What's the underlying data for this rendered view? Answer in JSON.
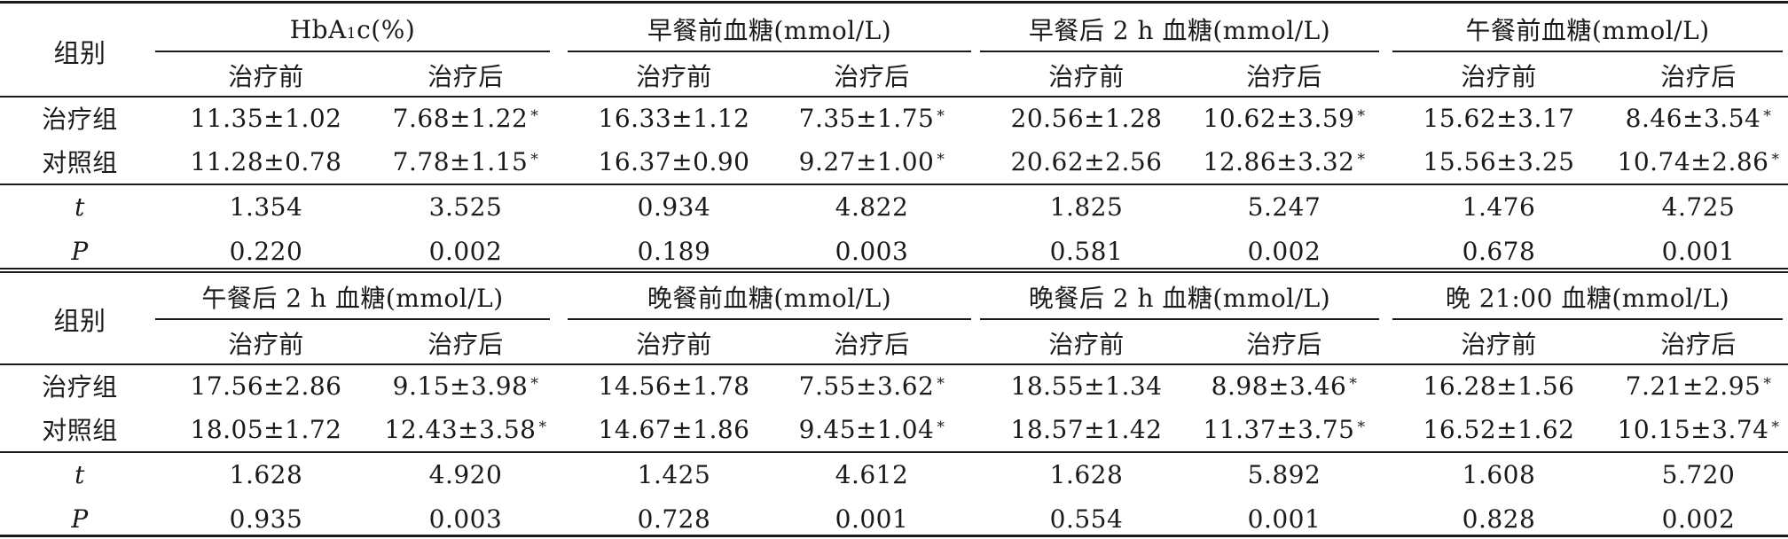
{
  "blocks": [
    {
      "group_label": "组别",
      "col_headers": [
        {
          "main": "HbA",
          "sub": "1",
          "rest": "c(%)"
        },
        {
          "main": "早餐前血糖(mmol/L)"
        },
        {
          "main": "早餐后 2 h 血糖(mmol/L)"
        },
        {
          "main": "午餐前血糖(mmol/L)"
        }
      ],
      "sub_headers": [
        "治疗前",
        "治疗后",
        "治疗前",
        "治疗后",
        "治疗前",
        "治疗后",
        "治疗前",
        "治疗后"
      ],
      "rows": [
        {
          "label": "治疗组",
          "values": [
            "11.35±1.02",
            "7.68±1.22",
            "16.33±1.12",
            "7.35±1.75",
            "20.56±1.28",
            "10.62±3.59",
            "15.62±3.17",
            "8.46±3.54"
          ]
        },
        {
          "label": "对照组",
          "values": [
            "11.28±0.78",
            "7.78±1.15",
            "16.37±0.90",
            "9.27±1.00",
            "20.62±2.56",
            "12.86±3.32",
            "15.56±3.25",
            "10.74±2.86"
          ]
        },
        {
          "label": "t",
          "values": [
            "1.354",
            "3.525",
            "0.934",
            "4.822",
            "1.825",
            "5.247",
            "1.476",
            "4.725"
          ]
        },
        {
          "label": "P",
          "values": [
            "0.220",
            "0.002",
            "0.189",
            "0.003",
            "0.581",
            "0.002",
            "0.678",
            "0.001"
          ]
        }
      ]
    },
    {
      "group_label": "组别",
      "col_headers": [
        {
          "main": "午餐后 2 h 血糖(mmol/L)"
        },
        {
          "main": "晚餐前血糖(mmol/L)"
        },
        {
          "main": "晚餐后 2 h 血糖(mmol/L)"
        },
        {
          "main": "晚 21:00 血糖(mmol/L)"
        }
      ],
      "sub_headers": [
        "治疗前",
        "治疗后",
        "治疗前",
        "治疗后",
        "治疗前",
        "治疗后",
        "治疗前",
        "治疗后"
      ],
      "rows": [
        {
          "label": "治疗组",
          "values": [
            "17.56±2.86",
            "9.15±3.98",
            "14.56±1.78",
            "7.55±3.62",
            "18.55±1.34",
            "8.98±3.46",
            "16.28±1.56",
            "7.21±2.95"
          ]
        },
        {
          "label": "对照组",
          "values": [
            "18.05±1.72",
            "12.43±3.58",
            "14.67±1.86",
            "9.45±1.04",
            "18.57±1.42",
            "11.37±3.75",
            "16.52±1.62",
            "10.15±3.74"
          ]
        },
        {
          "label": "t",
          "values": [
            "1.628",
            "4.920",
            "1.425",
            "4.612",
            "1.628",
            "5.892",
            "1.608",
            "5.720"
          ]
        },
        {
          "label": "P",
          "values": [
            "0.935",
            "0.003",
            "0.728",
            "0.001",
            "0.554",
            "0.001",
            "0.828",
            "0.002"
          ]
        }
      ]
    }
  ],
  "significance_marker": "*"
}
